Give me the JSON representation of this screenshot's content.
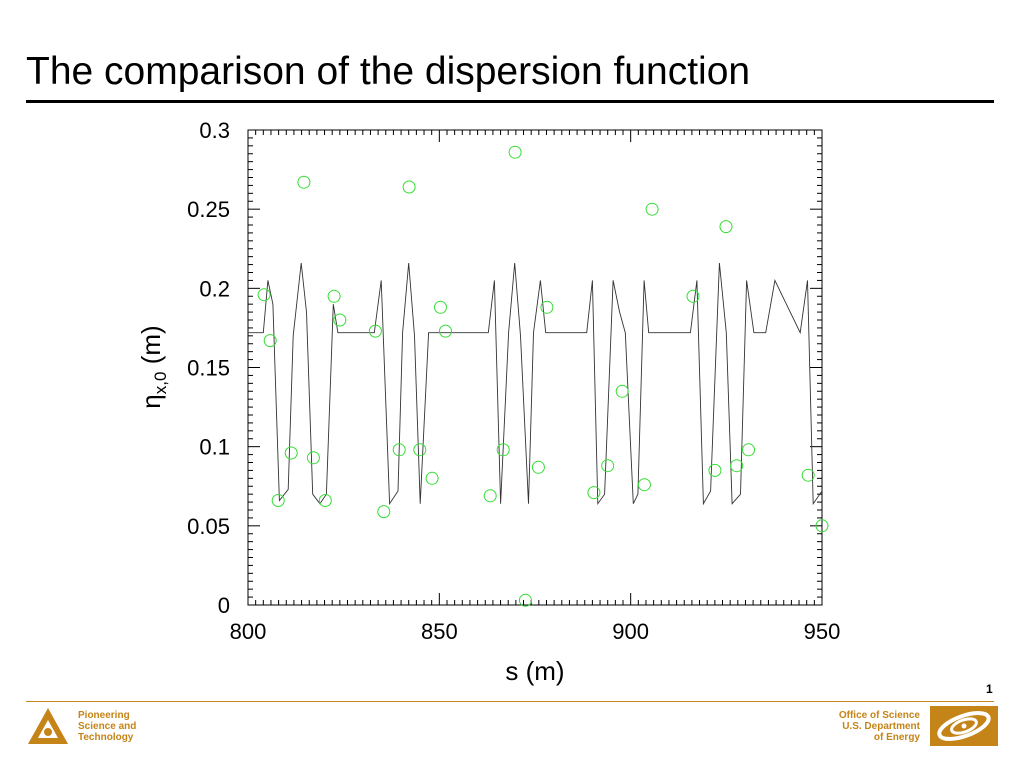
{
  "slide": {
    "title": "The comparison of the dispersion function",
    "page_number": "1"
  },
  "footer": {
    "left_lines": [
      "Pioneering",
      "Science and",
      "Technology"
    ],
    "right_lines": [
      "Office of Science",
      "U.S. Department",
      "of Energy"
    ],
    "accent_color": "#c58417",
    "left_logo_icon": "argonne-logo-icon",
    "right_logo_icon": "doe-office-of-science-logo-icon"
  },
  "chart_data": {
    "type": "line",
    "xlabel": "s (m)",
    "ylabel": "η",
    "ylabel_subscript": "x,0",
    "ylabel_unit": "(m)",
    "xlim": [
      800,
      950
    ],
    "ylim": [
      0,
      0.3
    ],
    "xticks": [
      800,
      850,
      900,
      950
    ],
    "xtick_labels": [
      "800",
      "850",
      "900",
      "950"
    ],
    "yticks": [
      0,
      0.05,
      0.1,
      0.15,
      0.2,
      0.25,
      0.3
    ],
    "ytick_labels": [
      "0",
      "0.05",
      "0.1",
      "0.15",
      "0.2",
      "0.25",
      "0.3"
    ],
    "grid": false,
    "line_color": "#333333",
    "marker_color": "#33dd33",
    "series": [
      {
        "style": "line",
        "x": [
          800,
          804,
          805.2,
          806.5,
          808.2,
          810.5,
          811.8,
          813.9,
          815.3,
          816.9,
          818.8,
          820.5,
          822.3,
          823.5,
          824.5,
          833.0,
          834.8,
          837.0,
          839.2,
          840.4,
          842.0,
          843.5,
          845.0,
          847.2,
          848.4,
          850.5,
          862.8,
          864.4,
          866.0,
          868.1,
          869.7,
          871.2,
          873.3,
          874.6,
          876.4,
          877.8,
          879.2,
          881.5,
          888.5,
          890.0,
          891.4,
          893.2,
          895.4,
          897.1,
          898.6,
          900.7,
          901.9,
          903.5,
          904.7,
          906.5,
          908.4,
          915.6,
          917.3,
          919.0,
          920.9,
          923.2,
          925.0,
          926.5,
          928.7,
          930.3,
          932.2,
          933.5,
          935.3,
          937.7,
          944.3,
          946.2,
          947.7,
          950
        ],
        "y": [
          0.172,
          0.172,
          0.205,
          0.19,
          0.066,
          0.073,
          0.17,
          0.216,
          0.185,
          0.07,
          0.064,
          0.07,
          0.19,
          0.172,
          0.172,
          0.172,
          0.205,
          0.064,
          0.072,
          0.172,
          0.216,
          0.17,
          0.064,
          0.172,
          0.172,
          0.172,
          0.172,
          0.205,
          0.064,
          0.172,
          0.216,
          0.17,
          0.064,
          0.172,
          0.205,
          0.172,
          0.172,
          0.172,
          0.172,
          0.205,
          0.064,
          0.07,
          0.205,
          0.185,
          0.172,
          0.064,
          0.07,
          0.205,
          0.172,
          0.172,
          0.172,
          0.172,
          0.205,
          0.064,
          0.072,
          0.216,
          0.172,
          0.064,
          0.07,
          0.205,
          0.172,
          0.172,
          0.172,
          0.205,
          0.172,
          0.205,
          0.064,
          0.072
        ]
      },
      {
        "style": "markers",
        "x": [
          804.2,
          805.8,
          807.9,
          811.3,
          814.6,
          817.1,
          820.2,
          822.5,
          824.0,
          833.3,
          835.5,
          839.5,
          842.1,
          844.9,
          848.1,
          850.3,
          851.6,
          863.3,
          866.7,
          869.8,
          872.5,
          875.9,
          878.1,
          890.4,
          894.0,
          897.8,
          903.6,
          905.6,
          916.3,
          922.0,
          924.9,
          927.7,
          930.8,
          946.4,
          950.0
        ],
        "y": [
          0.196,
          0.167,
          0.066,
          0.096,
          0.267,
          0.093,
          0.066,
          0.195,
          0.18,
          0.173,
          0.059,
          0.098,
          0.264,
          0.098,
          0.08,
          0.188,
          0.173,
          0.069,
          0.098,
          0.286,
          0.003,
          0.087,
          0.188,
          0.071,
          0.088,
          0.135,
          0.076,
          0.25,
          0.195,
          0.085,
          0.239,
          0.088,
          0.098,
          0.082,
          0.05
        ]
      }
    ]
  }
}
